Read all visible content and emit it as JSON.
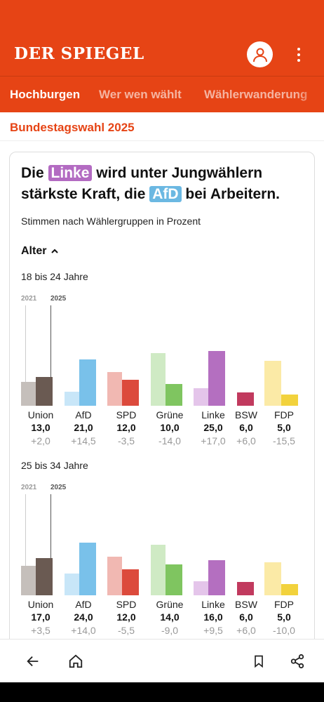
{
  "header": {
    "logo": "DER SPIEGEL",
    "accent_color": "#e64415",
    "icons": [
      "user-icon",
      "more-vertical-icon"
    ]
  },
  "tabs": [
    {
      "label": "Hochburgen",
      "active": true
    },
    {
      "label": "Wer wen wählt",
      "active": false
    },
    {
      "label": "Wählerwanderung",
      "active": false
    }
  ],
  "section_title": "Bundestagswahl 2025",
  "card": {
    "headline": {
      "part1": "Die",
      "linke": "Linke",
      "part2": "wird unter Jungwählern stärkste Kraft, die",
      "afd": "AfD",
      "part3": "bei Arbeitern."
    },
    "subtitle": "Stimmen nach Wählergruppen in Prozent",
    "filter_label": "Alter"
  },
  "chart_data": [
    {
      "type": "bar",
      "title": "18 bis 24 Jahre",
      "series_labels": [
        "2021",
        "2025"
      ],
      "categories": [
        "Union",
        "AfD",
        "SPD",
        "Grüne",
        "Linke",
        "BSW",
        "FDP"
      ],
      "series": [
        {
          "name": "2021",
          "values": [
            11.0,
            6.5,
            15.5,
            24.0,
            8.0,
            0,
            20.5
          ]
        },
        {
          "name": "2025",
          "values": [
            13.0,
            21.0,
            12.0,
            10.0,
            25.0,
            6.0,
            5.0
          ]
        }
      ],
      "value_labels": [
        "13,0",
        "21,0",
        "12,0",
        "10,0",
        "25,0",
        "6,0",
        "5,0"
      ],
      "diff_labels": [
        "+2,0",
        "+14,5",
        "-3,5",
        "-14,0",
        "+17,0",
        "+6,0",
        "-15,5"
      ],
      "colors_2025": [
        "#6a5a52",
        "#79c1ea",
        "#dc4a3c",
        "#7fc560",
        "#b46fc0",
        "#c13a5e",
        "#f2d23c"
      ],
      "colors_2021": [
        "#c5bfbb",
        "#c8e6f8",
        "#f1b8b2",
        "#cfeac4",
        "#e4c5ea",
        "#e6b6c3",
        "#fbeaa6"
      ],
      "ylim": [
        0,
        25
      ]
    },
    {
      "type": "bar",
      "title": "25 bis 34 Jahre",
      "series_labels": [
        "2021",
        "2025"
      ],
      "categories": [
        "Union",
        "AfD",
        "SPD",
        "Grüne",
        "Linke",
        "BSW",
        "FDP"
      ],
      "series": [
        {
          "name": "2021",
          "values": [
            13.5,
            10.0,
            17.5,
            23.0,
            6.5,
            0,
            15.0
          ]
        },
        {
          "name": "2025",
          "values": [
            17.0,
            24.0,
            12.0,
            14.0,
            16.0,
            6.0,
            5.0
          ]
        }
      ],
      "value_labels": [
        "17,0",
        "24,0",
        "12,0",
        "14,0",
        "16,0",
        "6,0",
        "5,0"
      ],
      "diff_labels": [
        "+3,5",
        "+14,0",
        "-5,5",
        "-9,0",
        "+9,5",
        "+6,0",
        "-10,0"
      ],
      "colors_2025": [
        "#6a5a52",
        "#79c1ea",
        "#dc4a3c",
        "#7fc560",
        "#b46fc0",
        "#c13a5e",
        "#f2d23c"
      ],
      "colors_2021": [
        "#c5bfbb",
        "#c8e6f8",
        "#f1b8b2",
        "#cfeac4",
        "#e4c5ea",
        "#e6b6c3",
        "#fbeaa6"
      ],
      "ylim": [
        0,
        25
      ]
    }
  ],
  "bottom_nav": {
    "icons": [
      "back-arrow-icon",
      "home-icon",
      "bookmark-icon",
      "share-icon"
    ]
  }
}
